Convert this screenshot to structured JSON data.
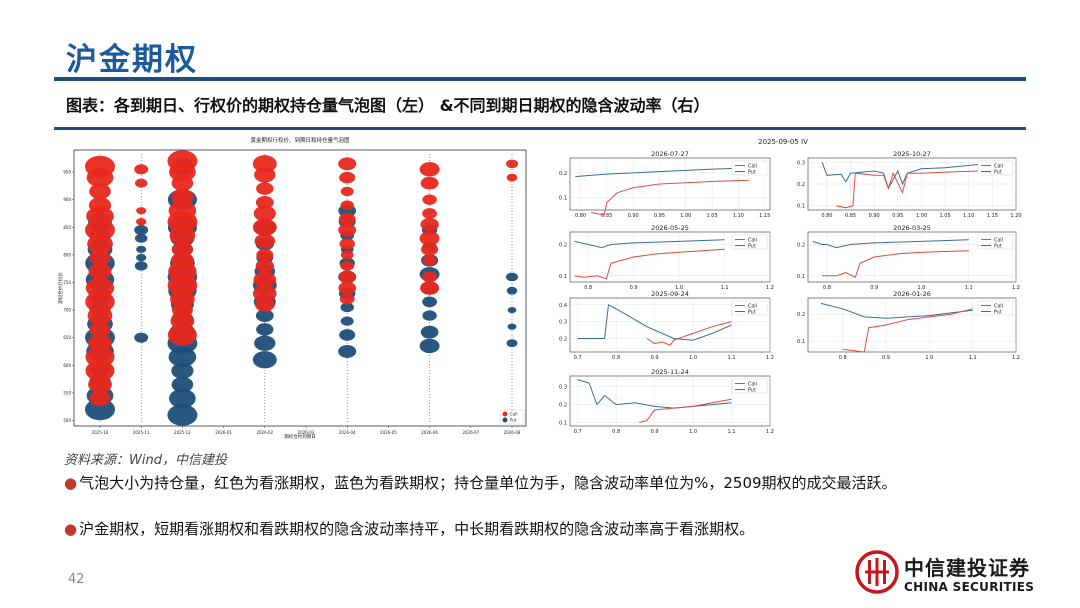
{
  "header": {
    "title": "沪金期权",
    "subtitle": "图表：各到期日、行权价的期权持仓量气泡图（左） &不同到期日期权的隐含波动率（右）"
  },
  "source": "资料来源：Wind，中信建投",
  "bullets": [
    "气泡大小为持仓量，红色为看涨期权，蓝色为看跌期权；持仓量单位为手，隐含波动率单位为%，2509期权的成交最活跃。",
    "沪金期权，短期看涨期权和看跌期权的隐含波动率持平，中长期看跌期权的隐含波动率高于看涨期权。"
  ],
  "page_number": "42",
  "logo": {
    "cn": "中信建投证券",
    "en": "CHINA SECURITIES"
  },
  "colors": {
    "title": "#1c5a9c",
    "rule": "#1f4e79",
    "call": "#e8281e",
    "put": "#1f4e79",
    "call_line": "#e34a3e",
    "put_line": "#3a6f9a"
  },
  "chart_data": [
    {
      "type": "scatter",
      "title": "黄金期权行权价、到期日和持仓量气泡图",
      "xlabel": "期权合约到期日",
      "ylabel": "期权合约行权价",
      "x_ticks": [
        "2025-10",
        "2025-11",
        "2025-12",
        "2026-01",
        "2026-02",
        "2026-03",
        "2026-04",
        "2026-05",
        "2026-06",
        "2026-07",
        "2026-08"
      ],
      "y_ticks": [
        500,
        550,
        600,
        650,
        700,
        750,
        800,
        850,
        900,
        950
      ],
      "ylim": [
        490,
        990
      ],
      "legend": [
        "Call",
        "Put"
      ],
      "legend_position": "lower-right",
      "series": [
        {
          "name": "Call",
          "points": [
            {
              "x": "2025-10",
              "strikes": [
                960,
                940,
                915,
                890,
                870,
                845,
                820,
                795,
                770,
                740,
                715,
                690,
                665,
                640,
                615,
                590,
                565,
                540
              ]
            },
            {
              "x": "2025-11",
              "strikes": [
                955,
                930,
                880,
                860
              ]
            },
            {
              "x": "2025-12",
              "strikes": [
                970,
                950,
                930,
                905,
                880,
                860,
                835,
                810,
                790,
                770,
                745,
                720,
                700,
                680,
                655
              ]
            },
            {
              "x": "2026-02",
              "strikes": [
                965,
                945,
                920,
                895,
                875,
                850,
                825,
                800,
                780,
                755,
                730,
                710
              ]
            },
            {
              "x": "2026-04",
              "strikes": [
                965,
                940,
                915,
                890,
                865,
                845,
                820,
                800,
                780,
                760,
                740,
                720
              ]
            },
            {
              "x": "2026-06",
              "strikes": [
                955,
                930,
                900,
                875,
                855,
                830,
                810,
                790,
                760,
                740
              ]
            },
            {
              "x": "2026-08",
              "strikes": [
                965,
                940
              ]
            }
          ]
        },
        {
          "name": "Put",
          "points": [
            {
              "x": "2025-10",
              "strikes": [
                520,
                545,
                570,
                595,
                625,
                650,
                675,
                700,
                725,
                755,
                785,
                810,
                835,
                860
              ]
            },
            {
              "x": "2025-11",
              "strikes": [
                845,
                830,
                810,
                795,
                780,
                650
              ]
            },
            {
              "x": "2025-12",
              "strikes": [
                510,
                540,
                565,
                590,
                615,
                640,
                660,
                685,
                710,
                735,
                760,
                785,
                810,
                830,
                850,
                900,
                960
              ]
            },
            {
              "x": "2026-02",
              "strikes": [
                610,
                640,
                665,
                690,
                715,
                745,
                770,
                795,
                820,
                850
              ]
            },
            {
              "x": "2026-04",
              "strikes": [
                625,
                655,
                680,
                705,
                730,
                760,
                785,
                810,
                835,
                860,
                880
              ]
            },
            {
              "x": "2026-06",
              "strikes": [
                635,
                660,
                690,
                715,
                740,
                765,
                790,
                815,
                845
              ]
            },
            {
              "x": "2026-08",
              "strikes": [
                760,
                735,
                700,
                670,
                640
              ]
            }
          ]
        }
      ]
    },
    {
      "type": "line",
      "title": "2025-09-05 IV",
      "legend": [
        "Call",
        "Put"
      ],
      "legend_position": "top-right",
      "panels": [
        {
          "name": "2026-07-27",
          "xlim": [
            0.78,
            1.16
          ],
          "x_ticks": [
            0.8,
            0.85,
            0.9,
            0.95,
            1.0,
            1.05,
            1.1,
            1.15
          ],
          "ylim": [
            0.05,
            0.26
          ],
          "y_ticks": [
            0.1,
            0.2
          ],
          "call": [
            [
              0.82,
              0.04
            ],
            [
              0.845,
              0.03
            ],
            [
              0.85,
              0.08
            ],
            [
              0.87,
              0.12
            ],
            [
              0.9,
              0.14
            ],
            [
              0.95,
              0.155
            ],
            [
              1.0,
              0.16
            ],
            [
              1.05,
              0.165
            ],
            [
              1.12,
              0.17
            ]
          ],
          "put": [
            [
              0.79,
              0.185
            ],
            [
              0.82,
              0.19
            ],
            [
              0.85,
              0.195
            ],
            [
              0.9,
              0.2
            ],
            [
              0.95,
              0.205
            ],
            [
              1.0,
              0.21
            ],
            [
              1.05,
              0.215
            ],
            [
              1.12,
              0.22
            ]
          ]
        },
        {
          "name": "2025-10-27",
          "xlim": [
            0.76,
            1.2
          ],
          "x_ticks": [
            0.8,
            0.85,
            0.9,
            0.95,
            1.0,
            1.05,
            1.1,
            1.15,
            1.2
          ],
          "ylim": [
            0.08,
            0.32
          ],
          "y_ticks": [
            0.1,
            0.2,
            0.3
          ],
          "call": [
            [
              0.82,
              0.1
            ],
            [
              0.84,
              0.09
            ],
            [
              0.855,
              0.1
            ],
            [
              0.86,
              0.25
            ],
            [
              0.9,
              0.24
            ],
            [
              0.92,
              0.24
            ],
            [
              0.93,
              0.18
            ],
            [
              0.94,
              0.25
            ],
            [
              0.96,
              0.16
            ],
            [
              0.97,
              0.25
            ],
            [
              1.0,
              0.25
            ],
            [
              1.05,
              0.255
            ],
            [
              1.12,
              0.26
            ]
          ],
          "put": [
            [
              0.79,
              0.3
            ],
            [
              0.8,
              0.24
            ],
            [
              0.83,
              0.245
            ],
            [
              0.84,
              0.21
            ],
            [
              0.85,
              0.25
            ],
            [
              0.9,
              0.26
            ],
            [
              0.92,
              0.25
            ],
            [
              0.93,
              0.18
            ],
            [
              0.95,
              0.26
            ],
            [
              0.96,
              0.2
            ],
            [
              0.97,
              0.25
            ],
            [
              1.0,
              0.27
            ],
            [
              1.05,
              0.275
            ],
            [
              1.12,
              0.29
            ]
          ]
        },
        {
          "name": "2026-05-25",
          "xlim": [
            0.76,
            1.2
          ],
          "x_ticks": [
            0.8,
            0.9,
            1.0,
            1.1,
            1.2
          ],
          "ylim": [
            0.08,
            0.24
          ],
          "y_ticks": [
            0.1,
            0.2
          ],
          "call": [
            [
              0.77,
              0.1
            ],
            [
              0.79,
              0.095
            ],
            [
              0.82,
              0.1
            ],
            [
              0.84,
              0.09
            ],
            [
              0.85,
              0.14
            ],
            [
              0.9,
              0.16
            ],
            [
              0.95,
              0.17
            ],
            [
              1.0,
              0.175
            ],
            [
              1.05,
              0.18
            ],
            [
              1.1,
              0.185
            ]
          ],
          "put": [
            [
              0.77,
              0.21
            ],
            [
              0.8,
              0.2
            ],
            [
              0.83,
              0.19
            ],
            [
              0.85,
              0.2
            ],
            [
              0.9,
              0.205
            ],
            [
              1.0,
              0.21
            ],
            [
              1.1,
              0.215
            ]
          ]
        },
        {
          "name": "2026-03-25",
          "xlim": [
            0.76,
            1.2
          ],
          "x_ticks": [
            0.8,
            0.9,
            1.0,
            1.1,
            1.2
          ],
          "ylim": [
            0.08,
            0.24
          ],
          "y_ticks": [
            0.1,
            0.2
          ],
          "call": [
            [
              0.79,
              0.1
            ],
            [
              0.82,
              0.1
            ],
            [
              0.84,
              0.11
            ],
            [
              0.86,
              0.095
            ],
            [
              0.87,
              0.14
            ],
            [
              0.9,
              0.16
            ],
            [
              0.95,
              0.17
            ],
            [
              1.0,
              0.175
            ],
            [
              1.1,
              0.18
            ]
          ],
          "put": [
            [
              0.77,
              0.21
            ],
            [
              0.79,
              0.2
            ],
            [
              0.8,
              0.2
            ],
            [
              0.82,
              0.19
            ],
            [
              0.85,
              0.2
            ],
            [
              0.9,
              0.205
            ],
            [
              1.0,
              0.21
            ],
            [
              1.1,
              0.215
            ]
          ]
        },
        {
          "name": "2025-09-24",
          "xlim": [
            0.68,
            1.2
          ],
          "x_ticks": [
            0.7,
            0.8,
            0.9,
            1.0,
            1.1,
            1.2
          ],
          "ylim": [
            0.12,
            0.44
          ],
          "y_ticks": [
            0.2,
            0.3,
            0.4
          ],
          "call": [
            [
              0.88,
              0.2
            ],
            [
              0.9,
              0.17
            ],
            [
              0.92,
              0.18
            ],
            [
              0.94,
              0.16
            ],
            [
              0.95,
              0.19
            ],
            [
              1.0,
              0.23
            ],
            [
              1.05,
              0.27
            ],
            [
              1.1,
              0.3
            ]
          ],
          "put": [
            [
              0.7,
              0.2
            ],
            [
              0.77,
              0.2
            ],
            [
              0.78,
              0.4
            ],
            [
              0.82,
              0.35
            ],
            [
              0.88,
              0.27
            ],
            [
              0.95,
              0.2
            ],
            [
              1.0,
              0.19
            ],
            [
              1.05,
              0.23
            ],
            [
              1.1,
              0.28
            ]
          ]
        },
        {
          "name": "2026-01-26",
          "xlim": [
            0.72,
            1.2
          ],
          "x_ticks": [
            0.8,
            0.9,
            1.0,
            1.1,
            1.2
          ],
          "ylim": [
            0.06,
            0.26
          ],
          "y_ticks": [
            0.1,
            0.2
          ],
          "call": [
            [
              0.8,
              0.07
            ],
            [
              0.85,
              0.06
            ],
            [
              0.86,
              0.15
            ],
            [
              0.9,
              0.16
            ],
            [
              0.95,
              0.18
            ],
            [
              1.0,
              0.19
            ],
            [
              1.05,
              0.2
            ],
            [
              1.1,
              0.22
            ]
          ],
          "put": [
            [
              0.75,
              0.24
            ],
            [
              0.8,
              0.22
            ],
            [
              0.85,
              0.19
            ],
            [
              0.9,
              0.185
            ],
            [
              0.95,
              0.19
            ],
            [
              1.0,
              0.195
            ],
            [
              1.05,
              0.205
            ],
            [
              1.1,
              0.215
            ]
          ]
        },
        {
          "name": "2025-11-24",
          "xlim": [
            0.68,
            1.2
          ],
          "x_ticks": [
            0.7,
            0.8,
            0.9,
            1.0,
            1.1,
            1.2
          ],
          "ylim": [
            0.08,
            0.36
          ],
          "y_ticks": [
            0.1,
            0.2,
            0.3
          ],
          "call": [
            [
              0.86,
              0.1
            ],
            [
              0.88,
              0.11
            ],
            [
              0.9,
              0.17
            ],
            [
              0.95,
              0.18
            ],
            [
              1.0,
              0.19
            ],
            [
              1.05,
              0.21
            ],
            [
              1.1,
              0.23
            ]
          ],
          "put": [
            [
              0.7,
              0.34
            ],
            [
              0.73,
              0.32
            ],
            [
              0.75,
              0.2
            ],
            [
              0.77,
              0.25
            ],
            [
              0.8,
              0.2
            ],
            [
              0.85,
              0.21
            ],
            [
              0.9,
              0.19
            ],
            [
              0.95,
              0.18
            ],
            [
              1.0,
              0.19
            ],
            [
              1.05,
              0.2
            ],
            [
              1.1,
              0.21
            ]
          ]
        }
      ]
    }
  ]
}
